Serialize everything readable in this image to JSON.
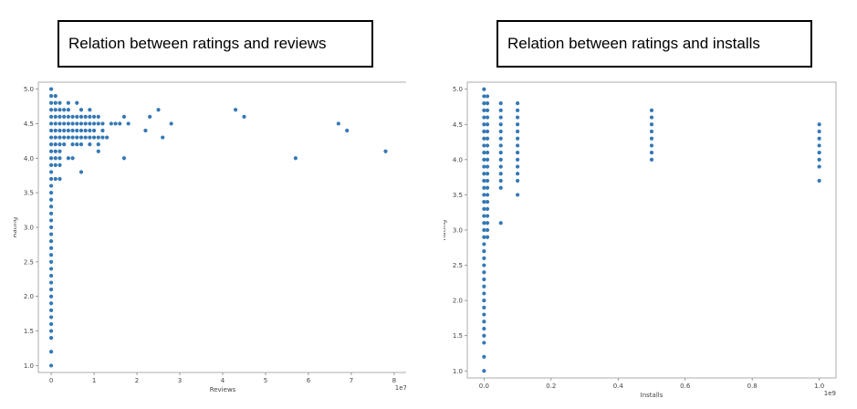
{
  "chart_data": [
    {
      "type": "scatter",
      "title": "Relation between ratings and reviews",
      "xlabel": "Reviews",
      "ylabel": "Rating",
      "x_scale_label": "1e7",
      "xlim": [
        -0.3,
        8.3
      ],
      "ylim": [
        0.9,
        5.1
      ],
      "xticks": [
        "0",
        "1",
        "2",
        "3",
        "4",
        "5",
        "6",
        "7",
        "8"
      ],
      "xtick_values": [
        0,
        1,
        2,
        3,
        4,
        5,
        6,
        7,
        8
      ],
      "yticks": [
        "1.0",
        "1.5",
        "2.0",
        "2.5",
        "3.0",
        "3.5",
        "4.0",
        "4.5",
        "5.0"
      ],
      "ytick_values": [
        1.0,
        1.5,
        2.0,
        2.5,
        3.0,
        3.5,
        4.0,
        4.5,
        5.0
      ],
      "grid": false,
      "color": "#3478b5",
      "points": [
        [
          0,
          1.0
        ],
        [
          0,
          1.2
        ],
        [
          0,
          1.4
        ],
        [
          0,
          1.5
        ],
        [
          0,
          1.6
        ],
        [
          0,
          1.7
        ],
        [
          0,
          1.8
        ],
        [
          0,
          1.9
        ],
        [
          0,
          2.0
        ],
        [
          0,
          2.1
        ],
        [
          0,
          2.2
        ],
        [
          0,
          2.3
        ],
        [
          0,
          2.4
        ],
        [
          0,
          2.5
        ],
        [
          0,
          2.6
        ],
        [
          0,
          2.7
        ],
        [
          0,
          2.8
        ],
        [
          0,
          2.9
        ],
        [
          0,
          3.0
        ],
        [
          0,
          3.1
        ],
        [
          0,
          3.2
        ],
        [
          0,
          3.3
        ],
        [
          0,
          3.4
        ],
        [
          0,
          3.5
        ],
        [
          0,
          3.6
        ],
        [
          0,
          3.7
        ],
        [
          0,
          3.8
        ],
        [
          0,
          3.9
        ],
        [
          0,
          4.0
        ],
        [
          0,
          4.1
        ],
        [
          0,
          4.2
        ],
        [
          0,
          4.3
        ],
        [
          0,
          4.4
        ],
        [
          0,
          4.5
        ],
        [
          0,
          4.6
        ],
        [
          0,
          4.7
        ],
        [
          0,
          4.8
        ],
        [
          0,
          4.9
        ],
        [
          0,
          5.0
        ],
        [
          0.1,
          3.7
        ],
        [
          0.1,
          3.9
        ],
        [
          0.1,
          4.0
        ],
        [
          0.1,
          4.1
        ],
        [
          0.1,
          4.2
        ],
        [
          0.1,
          4.3
        ],
        [
          0.1,
          4.4
        ],
        [
          0.1,
          4.5
        ],
        [
          0.1,
          4.6
        ],
        [
          0.1,
          4.7
        ],
        [
          0.1,
          4.8
        ],
        [
          0.1,
          4.9
        ],
        [
          0.2,
          3.7
        ],
        [
          0.2,
          3.9
        ],
        [
          0.2,
          4.0
        ],
        [
          0.2,
          4.1
        ],
        [
          0.2,
          4.2
        ],
        [
          0.2,
          4.3
        ],
        [
          0.2,
          4.4
        ],
        [
          0.2,
          4.5
        ],
        [
          0.2,
          4.6
        ],
        [
          0.2,
          4.7
        ],
        [
          0.2,
          4.8
        ],
        [
          0.3,
          4.2
        ],
        [
          0.3,
          4.3
        ],
        [
          0.3,
          4.4
        ],
        [
          0.3,
          4.5
        ],
        [
          0.3,
          4.6
        ],
        [
          0.3,
          4.7
        ],
        [
          0.4,
          4.0
        ],
        [
          0.4,
          4.3
        ],
        [
          0.4,
          4.4
        ],
        [
          0.4,
          4.5
        ],
        [
          0.4,
          4.6
        ],
        [
          0.4,
          4.7
        ],
        [
          0.4,
          4.8
        ],
        [
          0.5,
          4.0
        ],
        [
          0.5,
          4.2
        ],
        [
          0.5,
          4.3
        ],
        [
          0.5,
          4.4
        ],
        [
          0.5,
          4.5
        ],
        [
          0.5,
          4.6
        ],
        [
          0.6,
          4.2
        ],
        [
          0.6,
          4.3
        ],
        [
          0.6,
          4.4
        ],
        [
          0.6,
          4.5
        ],
        [
          0.6,
          4.6
        ],
        [
          0.6,
          4.8
        ],
        [
          0.7,
          3.8
        ],
        [
          0.7,
          4.2
        ],
        [
          0.7,
          4.3
        ],
        [
          0.7,
          4.4
        ],
        [
          0.7,
          4.5
        ],
        [
          0.7,
          4.6
        ],
        [
          0.7,
          4.7
        ],
        [
          0.8,
          4.3
        ],
        [
          0.8,
          4.4
        ],
        [
          0.8,
          4.5
        ],
        [
          0.8,
          4.6
        ],
        [
          0.9,
          4.2
        ],
        [
          0.9,
          4.3
        ],
        [
          0.9,
          4.4
        ],
        [
          0.9,
          4.5
        ],
        [
          0.9,
          4.6
        ],
        [
          0.9,
          4.7
        ],
        [
          1.0,
          4.3
        ],
        [
          1.0,
          4.4
        ],
        [
          1.0,
          4.5
        ],
        [
          1.0,
          4.6
        ],
        [
          1.1,
          4.1
        ],
        [
          1.1,
          4.2
        ],
        [
          1.1,
          4.3
        ],
        [
          1.1,
          4.5
        ],
        [
          1.1,
          4.6
        ],
        [
          1.2,
          4.3
        ],
        [
          1.2,
          4.4
        ],
        [
          1.2,
          4.5
        ],
        [
          1.3,
          4.3
        ],
        [
          1.4,
          4.5
        ],
        [
          1.5,
          4.5
        ],
        [
          1.6,
          4.5
        ],
        [
          1.7,
          4.0
        ],
        [
          1.7,
          4.6
        ],
        [
          1.8,
          4.5
        ],
        [
          2.2,
          4.4
        ],
        [
          2.3,
          4.6
        ],
        [
          2.5,
          4.7
        ],
        [
          2.6,
          4.3
        ],
        [
          2.8,
          4.5
        ],
        [
          4.3,
          4.7
        ],
        [
          4.5,
          4.6
        ],
        [
          5.7,
          4.0
        ],
        [
          6.7,
          4.5
        ],
        [
          6.9,
          4.4
        ],
        [
          7.8,
          4.1
        ]
      ]
    },
    {
      "type": "scatter",
      "title": "Relation between ratings and installs",
      "xlabel": "Installs",
      "ylabel": "Rating",
      "x_scale_label": "1e9",
      "xlim": [
        -0.05,
        1.05
      ],
      "ylim": [
        0.9,
        5.1
      ],
      "xticks": [
        "0.0",
        "0.2",
        "0.4",
        "0.6",
        "0.8",
        "1.0"
      ],
      "xtick_values": [
        0.0,
        0.2,
        0.4,
        0.6,
        0.8,
        1.0
      ],
      "yticks": [
        "1.0",
        "1.5",
        "2.0",
        "2.5",
        "3.0",
        "3.5",
        "4.0",
        "4.5",
        "5.0"
      ],
      "ytick_values": [
        1.0,
        1.5,
        2.0,
        2.5,
        3.0,
        3.5,
        4.0,
        4.5,
        5.0
      ],
      "grid": false,
      "color": "#3478b5",
      "points": [
        [
          0,
          1.0
        ],
        [
          0,
          1.2
        ],
        [
          0,
          1.4
        ],
        [
          0,
          1.5
        ],
        [
          0,
          1.6
        ],
        [
          0,
          1.7
        ],
        [
          0,
          1.8
        ],
        [
          0,
          1.9
        ],
        [
          0,
          2.0
        ],
        [
          0,
          2.1
        ],
        [
          0,
          2.2
        ],
        [
          0,
          2.3
        ],
        [
          0,
          2.4
        ],
        [
          0,
          2.5
        ],
        [
          0,
          2.6
        ],
        [
          0,
          2.7
        ],
        [
          0,
          2.8
        ],
        [
          0,
          2.9
        ],
        [
          0,
          3.0
        ],
        [
          0,
          3.1
        ],
        [
          0,
          3.2
        ],
        [
          0,
          3.3
        ],
        [
          0,
          3.4
        ],
        [
          0,
          3.5
        ],
        [
          0,
          3.6
        ],
        [
          0,
          3.7
        ],
        [
          0,
          3.8
        ],
        [
          0,
          3.9
        ],
        [
          0,
          4.0
        ],
        [
          0,
          4.1
        ],
        [
          0,
          4.2
        ],
        [
          0,
          4.3
        ],
        [
          0,
          4.4
        ],
        [
          0,
          4.5
        ],
        [
          0,
          4.6
        ],
        [
          0,
          4.7
        ],
        [
          0,
          4.8
        ],
        [
          0,
          4.9
        ],
        [
          0,
          5.0
        ],
        [
          0.01,
          2.9
        ],
        [
          0.01,
          3.0
        ],
        [
          0.01,
          3.1
        ],
        [
          0.01,
          3.2
        ],
        [
          0.01,
          3.3
        ],
        [
          0.01,
          3.4
        ],
        [
          0.01,
          3.5
        ],
        [
          0.01,
          3.6
        ],
        [
          0.01,
          3.7
        ],
        [
          0.01,
          3.8
        ],
        [
          0.01,
          3.9
        ],
        [
          0.01,
          4.0
        ],
        [
          0.01,
          4.1
        ],
        [
          0.01,
          4.2
        ],
        [
          0.01,
          4.3
        ],
        [
          0.01,
          4.4
        ],
        [
          0.01,
          4.5
        ],
        [
          0.01,
          4.6
        ],
        [
          0.01,
          4.7
        ],
        [
          0.01,
          4.8
        ],
        [
          0.01,
          4.9
        ],
        [
          0.05,
          3.1
        ],
        [
          0.05,
          3.6
        ],
        [
          0.05,
          3.7
        ],
        [
          0.05,
          3.8
        ],
        [
          0.05,
          3.9
        ],
        [
          0.05,
          4.0
        ],
        [
          0.05,
          4.1
        ],
        [
          0.05,
          4.2
        ],
        [
          0.05,
          4.3
        ],
        [
          0.05,
          4.4
        ],
        [
          0.05,
          4.5
        ],
        [
          0.05,
          4.6
        ],
        [
          0.05,
          4.7
        ],
        [
          0.05,
          4.8
        ],
        [
          0.1,
          3.5
        ],
        [
          0.1,
          3.7
        ],
        [
          0.1,
          3.8
        ],
        [
          0.1,
          3.9
        ],
        [
          0.1,
          4.0
        ],
        [
          0.1,
          4.1
        ],
        [
          0.1,
          4.2
        ],
        [
          0.1,
          4.3
        ],
        [
          0.1,
          4.4
        ],
        [
          0.1,
          4.5
        ],
        [
          0.1,
          4.6
        ],
        [
          0.1,
          4.7
        ],
        [
          0.1,
          4.8
        ],
        [
          0.5,
          4.0
        ],
        [
          0.5,
          4.1
        ],
        [
          0.5,
          4.2
        ],
        [
          0.5,
          4.3
        ],
        [
          0.5,
          4.4
        ],
        [
          0.5,
          4.5
        ],
        [
          0.5,
          4.6
        ],
        [
          0.5,
          4.7
        ],
        [
          1.0,
          3.7
        ],
        [
          1.0,
          3.9
        ],
        [
          1.0,
          4.0
        ],
        [
          1.0,
          4.1
        ],
        [
          1.0,
          4.2
        ],
        [
          1.0,
          4.3
        ],
        [
          1.0,
          4.4
        ],
        [
          1.0,
          4.5
        ]
      ]
    }
  ]
}
